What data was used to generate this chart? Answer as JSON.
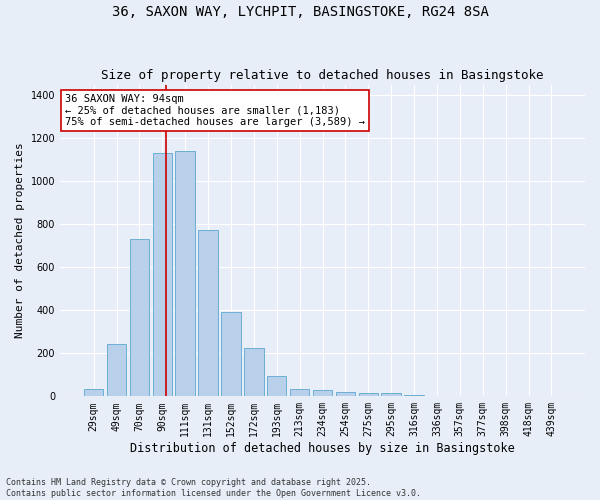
{
  "title1": "36, SAXON WAY, LYCHPIT, BASINGSTOKE, RG24 8SA",
  "title2": "Size of property relative to detached houses in Basingstoke",
  "xlabel": "Distribution of detached houses by size in Basingstoke",
  "ylabel": "Number of detached properties",
  "categories": [
    "29sqm",
    "49sqm",
    "70sqm",
    "90sqm",
    "111sqm",
    "131sqm",
    "152sqm",
    "172sqm",
    "193sqm",
    "213sqm",
    "234sqm",
    "254sqm",
    "275sqm",
    "295sqm",
    "316sqm",
    "336sqm",
    "357sqm",
    "377sqm",
    "398sqm",
    "418sqm",
    "439sqm"
  ],
  "values": [
    35,
    245,
    730,
    1130,
    1140,
    775,
    390,
    225,
    95,
    35,
    30,
    20,
    15,
    15,
    5,
    2,
    1,
    0,
    0,
    0,
    0
  ],
  "bar_color": "#b8d0ea",
  "bar_edge_color": "#6baed6",
  "vline_x_index": 3.18,
  "vline_color": "#cc0000",
  "annotation_text": "36 SAXON WAY: 94sqm\n← 25% of detached houses are smaller (1,183)\n75% of semi-detached houses are larger (3,589) →",
  "annotation_box_color": "#ffffff",
  "annotation_box_edge": "#cc0000",
  "footnote1": "Contains HM Land Registry data © Crown copyright and database right 2025.",
  "footnote2": "Contains public sector information licensed under the Open Government Licence v3.0.",
  "ylim": [
    0,
    1450
  ],
  "background_color": "#e8eef8",
  "grid_color": "#ffffff",
  "title1_fontsize": 10,
  "title2_fontsize": 9,
  "xlabel_fontsize": 8.5,
  "ylabel_fontsize": 8,
  "bar_width": 0.85,
  "annot_fontsize": 7.5,
  "footnote_fontsize": 6,
  "tick_fontsize": 7
}
